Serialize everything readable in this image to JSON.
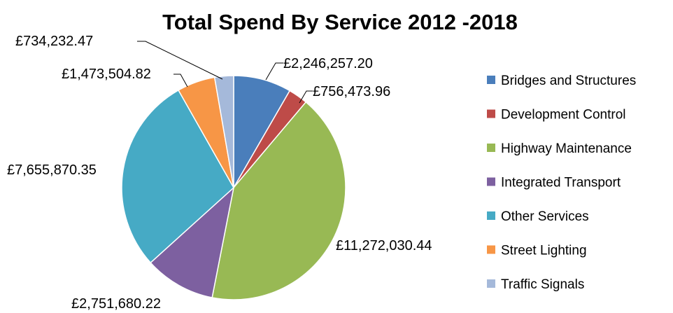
{
  "chart_data": {
    "type": "pie",
    "title": "Total Spend By Service 2012 -2018",
    "legend_position": "right",
    "start_angle_deg": 0,
    "direction": "clockwise",
    "slices": [
      {
        "name": "Bridges and Structures",
        "value": 2246257.2,
        "label": "£2,246,257.20",
        "color": "#4A7EBB"
      },
      {
        "name": "Development Control",
        "value": 756473.96,
        "label": "£756,473.96",
        "color": "#BE4B48"
      },
      {
        "name": "Highway Maintenance",
        "value": 11272030.44,
        "label": "£11,272,030.44",
        "color": "#98B954"
      },
      {
        "name": "Integrated Transport",
        "value": 2751680.22,
        "label": "£2,751,680.22",
        "color": "#7D60A0"
      },
      {
        "name": "Other Services",
        "value": 7655870.35,
        "label": "£7,655,870.35",
        "color": "#46AAC5"
      },
      {
        "name": "Street Lighting",
        "value": 1473504.82,
        "label": "£1,473,504.82",
        "color": "#F79646"
      },
      {
        "name": "Traffic Signals",
        "value": 734232.47,
        "label": "£734,232.47",
        "color": "#A5B9DA"
      }
    ]
  }
}
